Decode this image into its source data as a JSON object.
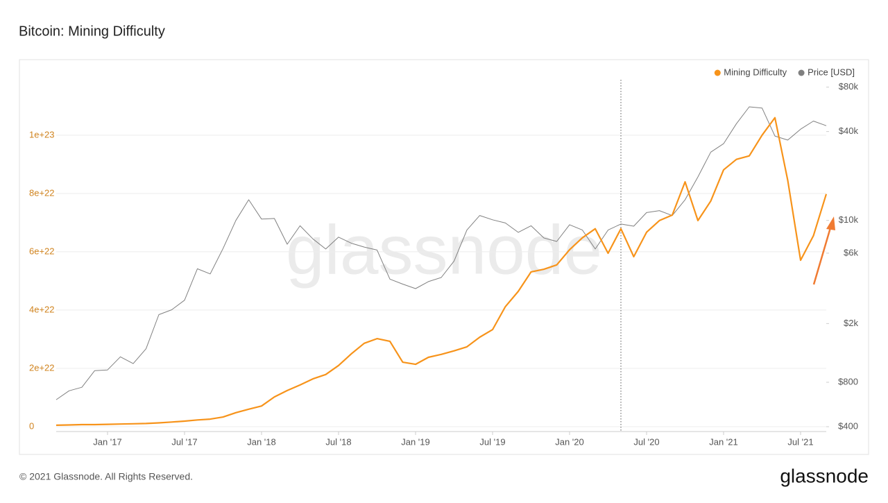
{
  "chart_data": {
    "type": "line",
    "title": "Bitcoin: Mining Difficulty",
    "watermark": "glassnode",
    "footer": "© 2021 Glassnode. All Rights Reserved.",
    "logo": "glassnode",
    "x": [
      "2016-09",
      "2016-10",
      "2016-11",
      "2016-12",
      "2017-01",
      "2017-02",
      "2017-03",
      "2017-04",
      "2017-05",
      "2017-06",
      "2017-07",
      "2017-08",
      "2017-09",
      "2017-10",
      "2017-11",
      "2017-12",
      "2018-01",
      "2018-02",
      "2018-03",
      "2018-04",
      "2018-05",
      "2018-06",
      "2018-07",
      "2018-08",
      "2018-09",
      "2018-10",
      "2018-11",
      "2018-12",
      "2019-01",
      "2019-02",
      "2019-03",
      "2019-04",
      "2019-05",
      "2019-06",
      "2019-07",
      "2019-08",
      "2019-09",
      "2019-10",
      "2019-11",
      "2019-12",
      "2020-01",
      "2020-02",
      "2020-03",
      "2020-04",
      "2020-05",
      "2020-06",
      "2020-07",
      "2020-08",
      "2020-09",
      "2020-10",
      "2020-11",
      "2020-12",
      "2021-01",
      "2021-02",
      "2021-03",
      "2021-04",
      "2021-05",
      "2021-06",
      "2021-07",
      "2021-08",
      "2021-09"
    ],
    "series": [
      {
        "name": "Mining Difficulty",
        "color": "#f7931a",
        "axis": "y",
        "values": [
          5e+20,
          6e+20,
          7e+20,
          7e+20,
          8e+20,
          9e+20,
          1e+21,
          1.1e+21,
          1.3e+21,
          1.6e+21,
          1.9e+21,
          2.3e+21,
          2.6e+21,
          3.3e+21,
          4.8e+21,
          6e+21,
          7.1e+21,
          1.02e+22,
          1.24e+22,
          1.43e+22,
          1.64e+22,
          1.79e+22,
          2.1e+22,
          2.5e+22,
          2.86e+22,
          3.02e+22,
          2.93e+22,
          2.21e+22,
          2.14e+22,
          2.38e+22,
          2.48e+22,
          2.6e+22,
          2.74e+22,
          3.07e+22,
          3.33e+22,
          4.12e+22,
          4.64e+22,
          5.31e+22,
          5.4e+22,
          5.55e+22,
          6.07e+22,
          6.48e+22,
          6.79e+22,
          5.95e+22,
          6.79e+22,
          5.83e+22,
          6.67e+22,
          7.07e+22,
          7.26e+22,
          8.4e+22,
          7.07e+22,
          7.74e+22,
          8.81e+22,
          9.17e+22,
          9.29e+22,
          1e+23,
          1.06e+23,
          8.45e+22,
          5.71e+22,
          6.55e+22,
          7.98e+22
        ]
      },
      {
        "name": "Price [USD]",
        "color": "#808080",
        "axis": "y2",
        "values": [
          610,
          700,
          740,
          960,
          970,
          1190,
          1070,
          1350,
          2300,
          2480,
          2880,
          4700,
          4340,
          6450,
          10000,
          13800,
          10200,
          10300,
          6900,
          9200,
          7500,
          6400,
          7700,
          7000,
          6600,
          6300,
          4000,
          3700,
          3450,
          3850,
          4100,
          5300,
          8600,
          10800,
          10100,
          9600,
          8300,
          9200,
          7600,
          7200,
          9350,
          8600,
          6400,
          8600,
          9450,
          9140,
          11300,
          11650,
          10780,
          13800,
          19700,
          29000,
          33100,
          45200,
          58800,
          57700,
          37300,
          35000,
          41500,
          47100,
          43800
        ]
      }
    ],
    "xlim": [
      "2016-09",
      "2021-09"
    ],
    "xticks": [
      {
        "value": "2017-01",
        "label": "Jan '17"
      },
      {
        "value": "2017-07",
        "label": "Jul '17"
      },
      {
        "value": "2018-01",
        "label": "Jan '18"
      },
      {
        "value": "2018-07",
        "label": "Jul '18"
      },
      {
        "value": "2019-01",
        "label": "Jan '19"
      },
      {
        "value": "2019-07",
        "label": "Jul '19"
      },
      {
        "value": "2020-01",
        "label": "Jan '20"
      },
      {
        "value": "2020-07",
        "label": "Jul '20"
      },
      {
        "value": "2021-01",
        "label": "Jan '21"
      },
      {
        "value": "2021-07",
        "label": "Jul '21"
      }
    ],
    "ylim": [
      -1.67e+21,
      1.19e+23
    ],
    "yticks": [
      0,
      {
        "value": 2e+22,
        "label": "2e+22"
      },
      {
        "value": 4e+22,
        "label": "4e+22"
      },
      {
        "value": 6e+22,
        "label": "6e+22"
      },
      {
        "value": 8e+22,
        "label": "8e+22"
      },
      {
        "value": 1e+23,
        "label": "1e+23"
      }
    ],
    "y2lim": [
      371,
      89700
    ],
    "y2ticks": [
      {
        "value": 400,
        "label": "$400"
      },
      {
        "value": 800,
        "label": "$800"
      },
      {
        "value": 2000,
        "label": "$2k"
      },
      {
        "value": 6000,
        "label": "$6k"
      },
      {
        "value": 10000,
        "label": "$10k"
      },
      {
        "value": 40000,
        "label": "$40k"
      },
      {
        "value": 80000,
        "label": "$80k"
      }
    ],
    "y2_log": true,
    "grid": true,
    "legend": "top-right",
    "vline": "2020-05"
  }
}
